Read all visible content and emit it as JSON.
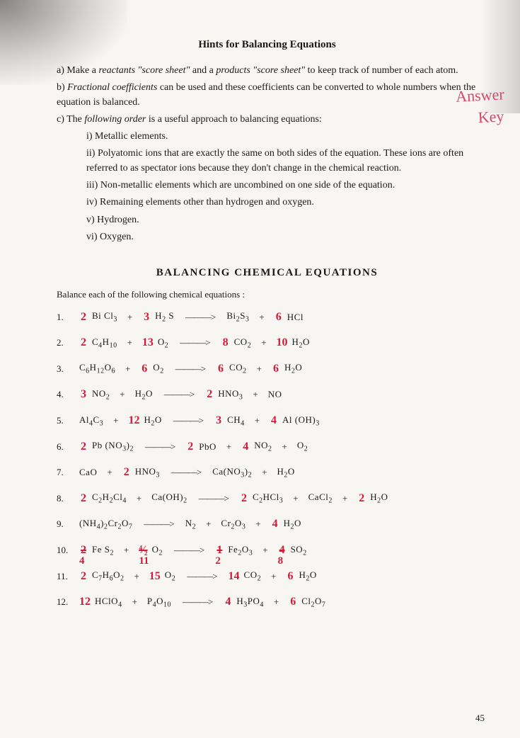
{
  "colors": {
    "paper_bg": "#f8f6f3",
    "text": "#1a1a1a",
    "red_ink": "#d11a3a",
    "pink_ink": "#d44a6a"
  },
  "typography": {
    "body_family": "Georgia, 'Times New Roman', serif",
    "body_size_pt": 11,
    "handwriting_family": "'Comic Sans MS', cursive",
    "title_size_pt": 12,
    "title_weight": "bold"
  },
  "annotation": {
    "line1": "Answer",
    "line2": "Key"
  },
  "title1": "Hints for Balancing Equations",
  "hints": {
    "a_pre": "a) Make a ",
    "a_it1": "reactants \"score sheet\"",
    "a_mid": " and a ",
    "a_it2": "products \"score sheet\"",
    "a_post": " to keep track of  number of each atom.",
    "b_pre": "b) ",
    "b_it": "Fractional coefficients",
    "b_post": " can be used and these coefficients can be converted to whole numbers when the equation is balanced.",
    "c_pre": "c) The ",
    "c_it": "following order",
    "c_post": " is a useful approach to balancing equations:",
    "i": "i) Metallic elements.",
    "ii": "ii) Polyatomic ions that are exactly the same on both sides of the equation.  These ions are often referred to as spectator ions because they don't change in the chemical reaction.",
    "iii": "iii) Non-metallic elements which are uncombined on one side of the equation.",
    "iv": "iv) Remaining elements other than hydrogen and oxygen.",
    "v": "v) Hydrogen.",
    "vi": "vi) Oxygen."
  },
  "title2": "BALANCING CHEMICAL EQUATIONS",
  "instruction": "Balance each of the following chemical equations :",
  "arrow": "———>",
  "plus": "+",
  "equations": [
    {
      "n": "1.",
      "terms": [
        {
          "c": "2",
          "f": "Bi Cl",
          "s": "3"
        },
        {
          "op": "+"
        },
        {
          "c": "3",
          "f": "H",
          "s": "2",
          "f2": " S"
        },
        {
          "op": "->"
        },
        {
          "f": "Bi",
          "s": "2",
          "f2": "S",
          "s2": "3"
        },
        {
          "op": "+"
        },
        {
          "c": "6",
          "f": "HCl"
        }
      ]
    },
    {
      "n": "2.",
      "terms": [
        {
          "c": "2",
          "f": "C",
          "s": "4",
          "f2": "H",
          "s2": "10"
        },
        {
          "op": "+"
        },
        {
          "c": "13",
          "f": "O",
          "s": "2"
        },
        {
          "op": "->"
        },
        {
          "c": "8",
          "f": "CO",
          "s": "2"
        },
        {
          "op": "+"
        },
        {
          "c": "10",
          "f": "H",
          "s": "2",
          "f2": "O"
        }
      ]
    },
    {
      "n": "3.",
      "terms": [
        {
          "f": "C",
          "s": "6",
          "f2": "H",
          "s2": "12",
          "f3": "O",
          "s3": "6"
        },
        {
          "op": "+"
        },
        {
          "c": "6",
          "f": "O",
          "s": "2"
        },
        {
          "op": "->"
        },
        {
          "c": "6",
          "f": "CO",
          "s": "2"
        },
        {
          "op": "+"
        },
        {
          "c": "6",
          "f": "H",
          "s": "2",
          "f2": "O"
        }
      ]
    },
    {
      "n": "4.",
      "terms": [
        {
          "c": "3",
          "f": "NO",
          "s": "2"
        },
        {
          "op": "+"
        },
        {
          "f": "H",
          "s": "2",
          "f2": "O"
        },
        {
          "op": "->"
        },
        {
          "c": "2",
          "f": "HNO",
          "s": "3"
        },
        {
          "op": "+"
        },
        {
          "f": "NO"
        }
      ]
    },
    {
      "n": "5.",
      "terms": [
        {
          "f": "Al",
          "s": "4",
          "f2": "C",
          "s2": "3"
        },
        {
          "op": "+"
        },
        {
          "c": "12",
          "f": "H",
          "s": "2",
          "f2": "O"
        },
        {
          "op": "->"
        },
        {
          "c": "3",
          "f": "CH",
          "s": "4"
        },
        {
          "op": "+"
        },
        {
          "c": "4",
          "f": "Al (OH)",
          "s": "3"
        }
      ]
    },
    {
      "n": "6.",
      "terms": [
        {
          "c": "2",
          "f": "Pb (NO",
          "s": "3",
          "f2": ")",
          "s2": "2"
        },
        {
          "op": "->"
        },
        {
          "c": "2",
          "f": "PbO"
        },
        {
          "op": "+"
        },
        {
          "c": "4",
          "f": "NO",
          "s": "2"
        },
        {
          "op": "+"
        },
        {
          "f": "O",
          "s": "2"
        }
      ]
    },
    {
      "n": "7.",
      "terms": [
        {
          "f": "CaO"
        },
        {
          "op": "+"
        },
        {
          "c": "2",
          "f": "HNO",
          "s": "3"
        },
        {
          "op": "->"
        },
        {
          "f": "Ca(NO",
          "s": "3",
          "f2": ")",
          "s2": "2"
        },
        {
          "op": "+"
        },
        {
          "f": "H",
          "s": "2",
          "f2": "O"
        }
      ]
    },
    {
      "n": "8.",
      "terms": [
        {
          "c": "2",
          "f": "C",
          "s": "2",
          "f2": "H",
          "s2": "2",
          "f3": "Cl",
          "s3": "4"
        },
        {
          "op": "+"
        },
        {
          "f": "Ca(OH)",
          "s": "2"
        },
        {
          "op": "->"
        },
        {
          "c": "2",
          "f": "C",
          "s": "2",
          "f2": "HCl",
          "s2": "3"
        },
        {
          "op": "+"
        },
        {
          "f": "CaCl",
          "s": "2"
        },
        {
          "op": "+"
        },
        {
          "c": "2",
          "f": "H",
          "s": "2",
          "f2": "O"
        }
      ]
    },
    {
      "n": "9.",
      "terms": [
        {
          "f": "(NH",
          "s": "4",
          "f2": ")",
          "s2": "2",
          "f3": "Cr",
          "s3": "2",
          "f4": "O",
          "s4": "7"
        },
        {
          "op": "->"
        },
        {
          "f": "N",
          "s": "2"
        },
        {
          "op": "+"
        },
        {
          "f": "Cr",
          "s": "2",
          "f2": "O",
          "s2": "3"
        },
        {
          "op": "+"
        },
        {
          "c": "4",
          "f": "H",
          "s": "2",
          "f2": "O"
        }
      ]
    },
    {
      "n": "10.",
      "terms": [
        {
          "c": "2",
          "strike": true,
          "below": "4",
          "f": "Fe S",
          "s": "2"
        },
        {
          "op": "+"
        },
        {
          "c": "⁴⁄₂",
          "strike": true,
          "below": "11",
          "f": "O",
          "s": "2"
        },
        {
          "op": "->"
        },
        {
          "c": "1",
          "strike": true,
          "below": "2",
          "f": "Fe",
          "s": "2",
          "f2": "O",
          "s2": "3"
        },
        {
          "op": "+"
        },
        {
          "c": "4",
          "strike": true,
          "below": "8",
          "f": "SO",
          "s": "2"
        }
      ]
    },
    {
      "n": "11.",
      "terms": [
        {
          "c": "2",
          "f": "C",
          "s": "7",
          "f2": "H",
          "s2": "6",
          "f3": "O",
          "s3": "2"
        },
        {
          "op": "+"
        },
        {
          "c": "15",
          "f": "O",
          "s": "2"
        },
        {
          "op": "->"
        },
        {
          "c": "14",
          "f": "CO",
          "s": "2"
        },
        {
          "op": "+"
        },
        {
          "c": "6",
          "f": "H",
          "s": "2",
          "f2": "O"
        }
      ]
    },
    {
      "n": "12.",
      "terms": [
        {
          "c": "12",
          "f": "HClO",
          "s": "4"
        },
        {
          "op": "+"
        },
        {
          "f": "P",
          "s": "4",
          "f2": "O",
          "s2": "10"
        },
        {
          "op": "->"
        },
        {
          "c": "4",
          "f": "H",
          "s": "3",
          "f2": "PO",
          "s2": "4"
        },
        {
          "op": "+"
        },
        {
          "c": "6",
          "f": "Cl",
          "s": "2",
          "f2": "O",
          "s2": "7"
        }
      ]
    }
  ],
  "page_number": "45"
}
